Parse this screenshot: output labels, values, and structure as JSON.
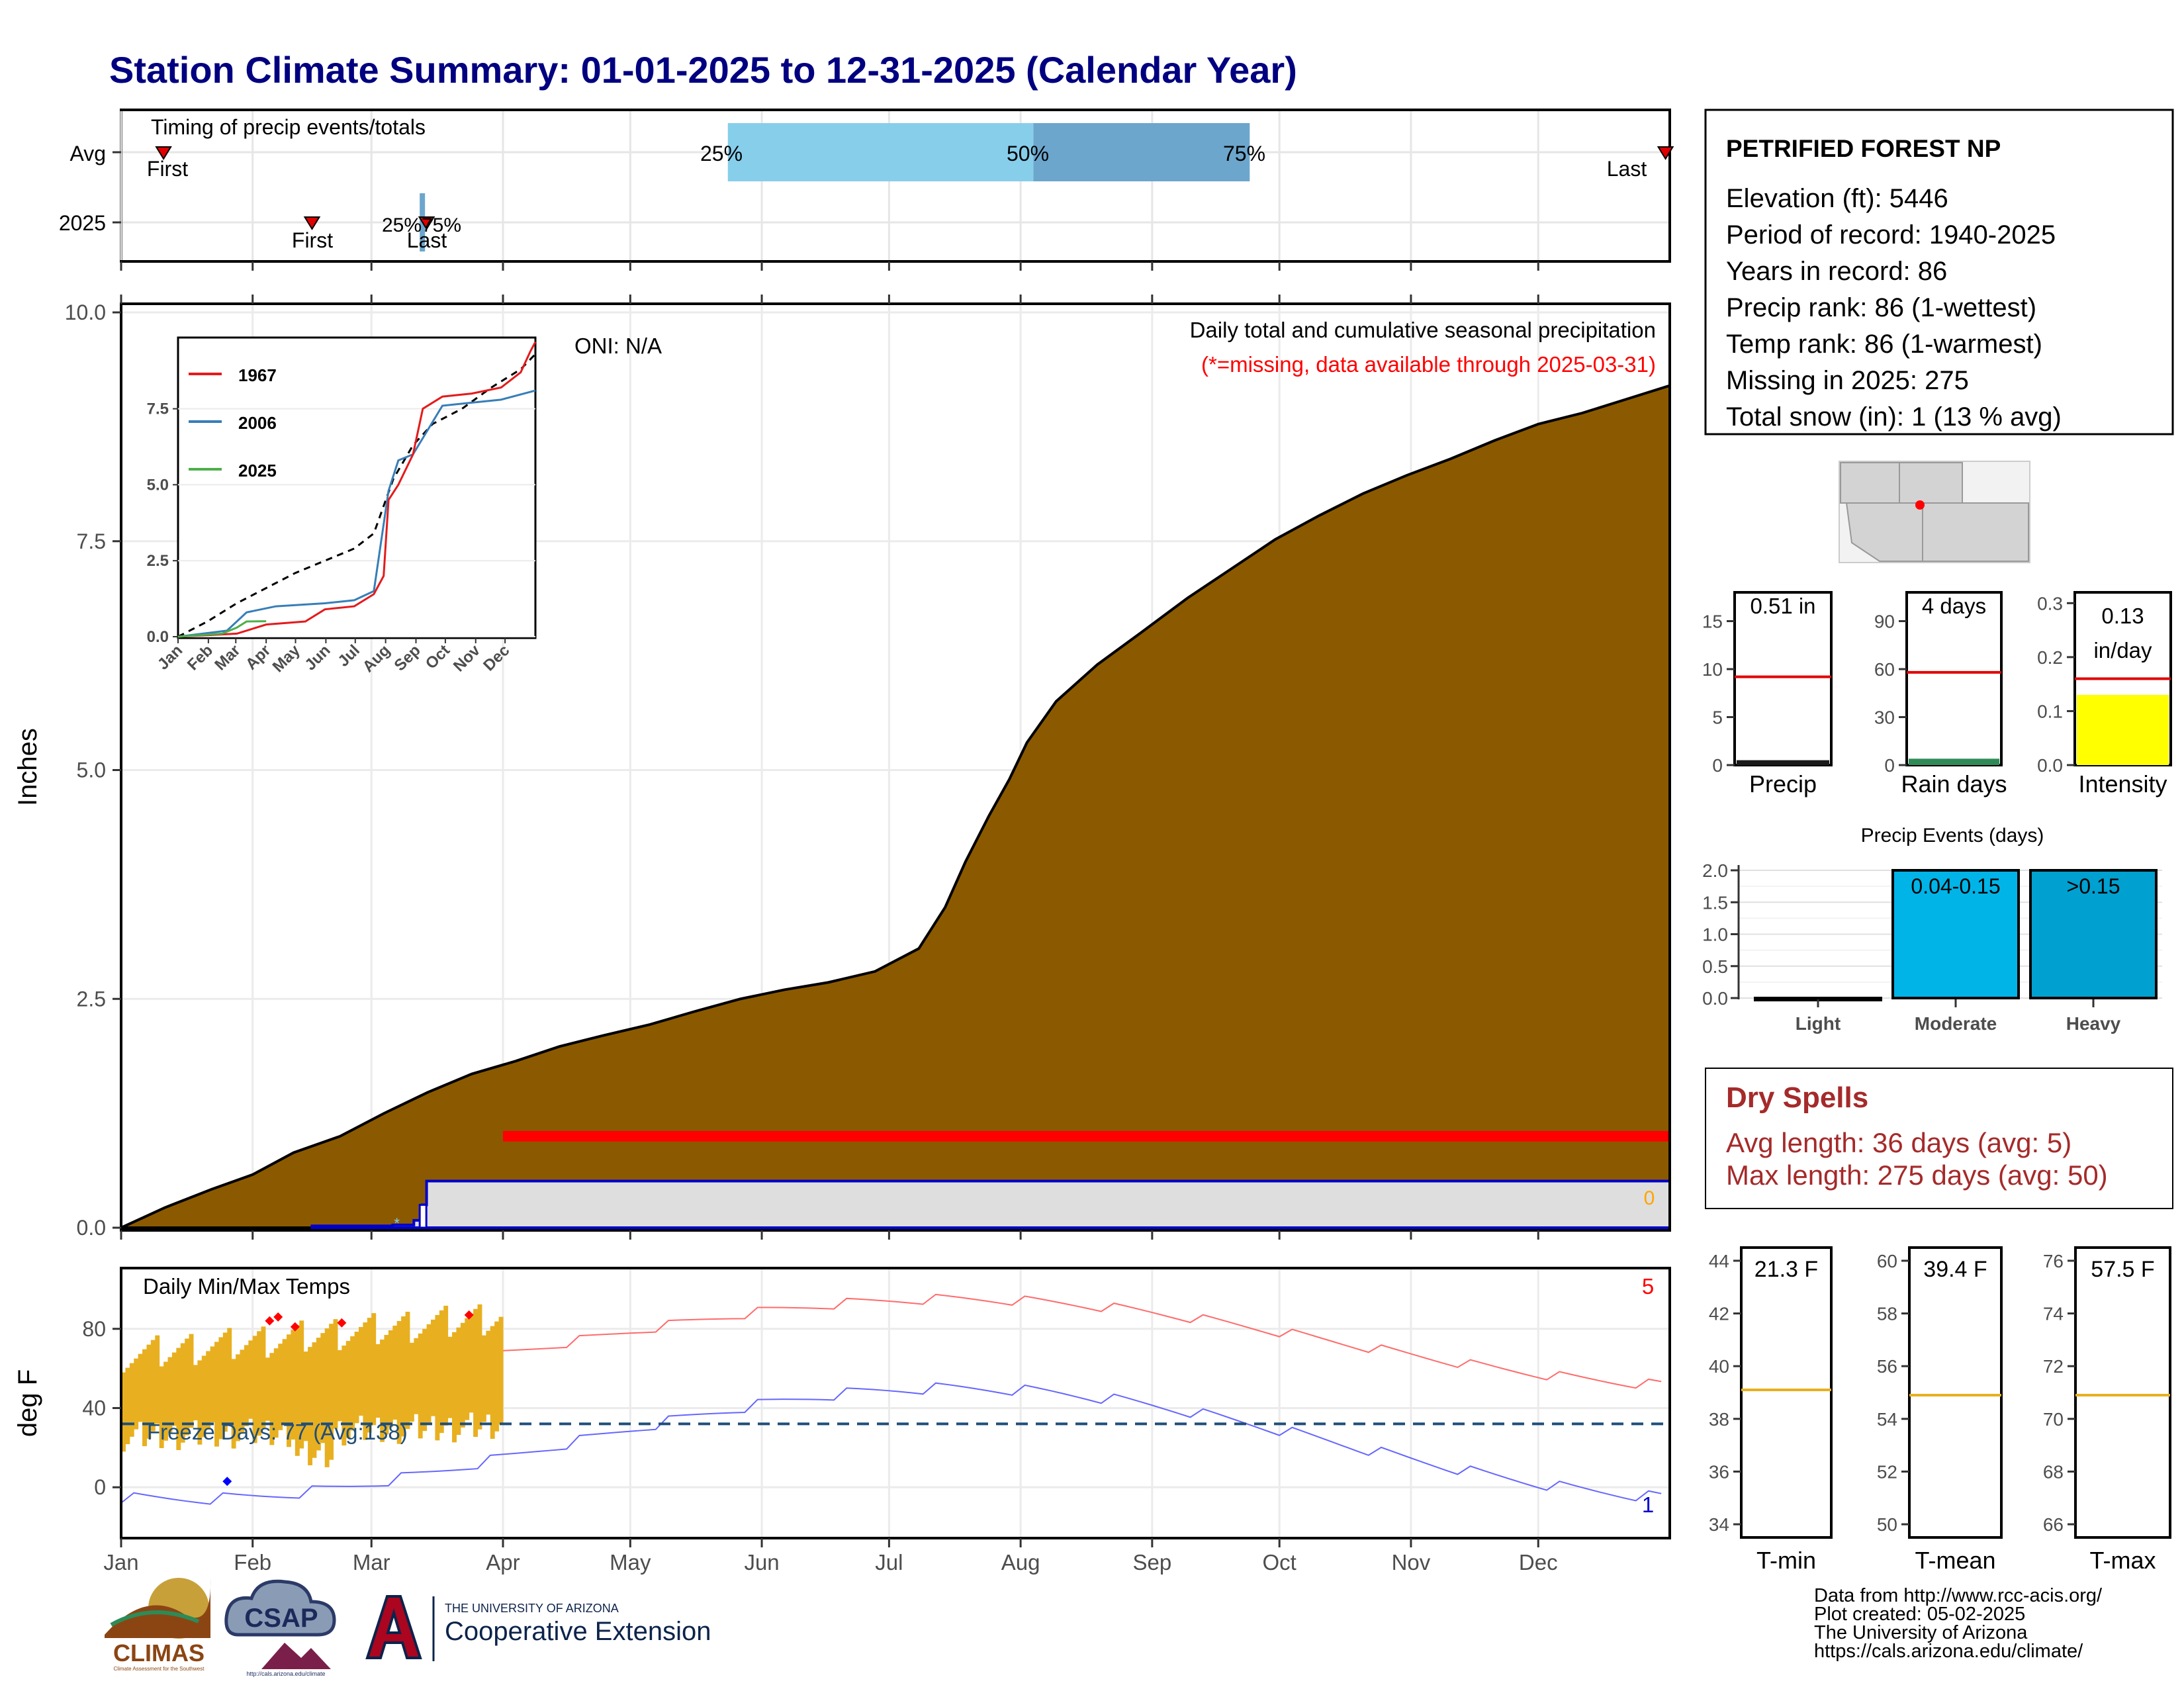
{
  "title": "Station Climate Summary: 01-01-2025 to 12-31-2025 (Calendar Year)",
  "colors": {
    "title": "#000080",
    "cumulative_fill": "#8B5A00",
    "missing": "#FF0000",
    "precip_2025": "#0000CC",
    "pct_light": "#87CEEB",
    "pct_dark": "#6CA6CD",
    "temp_bar": "#E8B020",
    "tmax_line": "#FF6B6B",
    "tmin_line": "#6666FF",
    "avg_line": "#E8B020",
    "rain_bar_light": "#00B4E8",
    "rain_bar_heavy": "#00A0D0",
    "intensity_bar": "#FFFF00",
    "dry_spell_text": "#A52A2A"
  },
  "months": [
    "Jan",
    "Feb",
    "Mar",
    "Apr",
    "May",
    "Jun",
    "Jul",
    "Aug",
    "Sep",
    "Oct",
    "Nov",
    "Dec"
  ],
  "timing": {
    "label": "Timing of precip events/totals",
    "rows": [
      "Avg",
      "2025"
    ],
    "first_label": "First",
    "last_label": "Last",
    "pct_25": "25%",
    "pct_50": "50%",
    "pct_75": "75%",
    "avg_first_day": 10,
    "avg_last_day": 364,
    "avg_p25_day": 143,
    "avg_p50_day": 215,
    "avg_p75_day": 266,
    "y2025_first_day": 45,
    "y2025_last_day": 72,
    "y2025_pct_day": 71,
    "y2025_pct_label": "25%75%"
  },
  "precip_chart": {
    "ylabel": "Inches",
    "yticks": [
      "0.0",
      "2.5",
      "5.0",
      "7.5",
      "10.0"
    ],
    "ymax": 10.0,
    "annotation_title": "Daily total and cumulative seasonal precipitation",
    "annotation_missing": "(*=missing, data available through 2025-03-31)",
    "oni": "ONI: N/A",
    "end_value_label": "0",
    "cumulative_avg": [
      [
        0,
        0
      ],
      [
        15,
        0.22
      ],
      [
        31,
        0.42
      ],
      [
        45,
        0.58
      ],
      [
        59,
        0.82
      ],
      [
        75,
        1.0
      ],
      [
        90,
        1.25
      ],
      [
        105,
        1.48
      ],
      [
        120,
        1.68
      ],
      [
        135,
        1.82
      ],
      [
        150,
        1.98
      ],
      [
        165,
        2.1
      ],
      [
        181,
        2.22
      ],
      [
        196,
        2.36
      ],
      [
        212,
        2.5
      ],
      [
        227,
        2.6
      ],
      [
        242,
        2.68
      ],
      [
        258,
        2.8
      ],
      [
        273,
        3.05
      ],
      [
        282,
        3.5
      ],
      [
        289,
        4.0
      ],
      [
        297,
        4.5
      ],
      [
        304,
        4.9
      ],
      [
        310,
        5.3
      ],
      [
        320,
        5.75
      ],
      [
        334,
        6.15
      ],
      [
        349,
        6.5
      ],
      [
        365,
        6.88
      ],
      [
        380,
        7.2
      ],
      [
        395,
        7.52
      ],
      [
        410,
        7.78
      ],
      [
        425,
        8.02
      ],
      [
        440,
        8.22
      ],
      [
        455,
        8.4
      ],
      [
        470,
        8.6
      ],
      [
        485,
        8.78
      ],
      [
        500,
        8.9
      ],
      [
        515,
        9.05
      ],
      [
        530,
        9.2
      ]
    ],
    "precip_2025": [
      [
        45,
        0
      ],
      [
        45,
        0.02
      ],
      [
        64,
        0.02
      ],
      [
        64,
        0.03
      ],
      [
        69,
        0.03
      ],
      [
        69,
        0.08
      ],
      [
        71,
        0.08
      ],
      [
        71,
        0.25
      ],
      [
        72,
        0.25
      ],
      [
        72,
        0.51
      ],
      [
        365,
        0.51
      ]
    ],
    "missing_from_day": 90,
    "missing_level": 1.0,
    "plot_days": 365,
    "x_note": "cumulative_avg uses a compressed day axis (0-530 spans Jan-Dec)"
  },
  "inset": {
    "legend": [
      "1967",
      "2006",
      "2025"
    ],
    "legend_colors": [
      "#E41A1C",
      "#377EB8",
      "#4DAF4A"
    ],
    "yticks": [
      "0.0",
      "2.5",
      "5.0",
      "7.5"
    ],
    "months": [
      "Jan",
      "Feb",
      "Mar",
      "Apr",
      "May",
      "Jun",
      "Jul",
      "Aug",
      "Sep",
      "Oct",
      "Nov",
      "Dec"
    ],
    "avg": [
      [
        0,
        0
      ],
      [
        30,
        0.5
      ],
      [
        60,
        1.1
      ],
      [
        90,
        1.6
      ],
      [
        120,
        2.1
      ],
      [
        150,
        2.5
      ],
      [
        180,
        2.9
      ],
      [
        200,
        3.4
      ],
      [
        220,
        5.2
      ],
      [
        240,
        6.3
      ],
      [
        260,
        7.0
      ],
      [
        290,
        7.5
      ],
      [
        320,
        8.2
      ],
      [
        350,
        8.8
      ],
      [
        365,
        9.3
      ]
    ],
    "y1967": [
      [
        0,
        0
      ],
      [
        60,
        0.1
      ],
      [
        90,
        0.4
      ],
      [
        130,
        0.5
      ],
      [
        150,
        0.9
      ],
      [
        180,
        1.0
      ],
      [
        200,
        1.4
      ],
      [
        210,
        2.0
      ],
      [
        215,
        4.5
      ],
      [
        225,
        5.0
      ],
      [
        240,
        6.0
      ],
      [
        250,
        7.5
      ],
      [
        270,
        7.9
      ],
      [
        300,
        8.0
      ],
      [
        330,
        8.2
      ],
      [
        350,
        8.7
      ],
      [
        360,
        9.4
      ],
      [
        365,
        9.7
      ]
    ],
    "y2006": [
      [
        0,
        0
      ],
      [
        50,
        0.2
      ],
      [
        70,
        0.8
      ],
      [
        100,
        1.0
      ],
      [
        150,
        1.1
      ],
      [
        180,
        1.2
      ],
      [
        200,
        1.5
      ],
      [
        215,
        4.8
      ],
      [
        225,
        5.8
      ],
      [
        240,
        6.0
      ],
      [
        255,
        6.8
      ],
      [
        270,
        7.6
      ],
      [
        300,
        7.7
      ],
      [
        330,
        7.8
      ],
      [
        365,
        8.1
      ]
    ],
    "y2025": [
      [
        0,
        0
      ],
      [
        45,
        0.1
      ],
      [
        60,
        0.3
      ],
      [
        70,
        0.5
      ],
      [
        90,
        0.51
      ]
    ],
    "ymax": 9.8
  },
  "temp_chart": {
    "title": "Daily Min/Max Temps",
    "ylabel": "deg F",
    "yticks": [
      "0",
      "40",
      "80"
    ],
    "freeze_label": "Freeze Days: 77 (Avg:138)",
    "count_hot": "5",
    "count_cold": "1",
    "freeze_level": 32,
    "obs_days": 90,
    "ymin": -25,
    "ymax": 110
  },
  "station": {
    "name": "PETRIFIED FOREST NP",
    "lines": [
      "Elevation (ft): 5446",
      "Period of record: 1940-2025",
      "Years in record: 86",
      "Precip rank: 86 (1-wettest)",
      "Temp rank: 86 (1-warmest)",
      "Missing in 2025: 275",
      "Total snow (in): 1 (13 % avg)"
    ]
  },
  "summary_bars": [
    {
      "label": "Precip",
      "value_text": "0.51 in",
      "value": 0.51,
      "avg": 9.2,
      "yticks": [
        "0",
        "5",
        "10",
        "15"
      ],
      "ymax": 18,
      "fill": "#1A1A1A"
    },
    {
      "label": "Rain days",
      "value_text": "4 days",
      "value": 4,
      "avg": 58,
      "yticks": [
        "0",
        "30",
        "60",
        "90"
      ],
      "ymax": 108,
      "fill": "#2E8B57"
    },
    {
      "label": "Intensity",
      "value_text": "0.13 in/day",
      "value": 0.13,
      "avg": 0.16,
      "yticks": [
        "0.0",
        "0.1",
        "0.2",
        "0.3"
      ],
      "ymax": 0.32,
      "fill": "#FFFF00"
    }
  ],
  "intensity_value_lines": [
    "0.13",
    "in/day"
  ],
  "precip_events": {
    "title": "Precip Events (days)",
    "categories": [
      "Light",
      "Moderate",
      "Heavy"
    ],
    "values": [
      0,
      2,
      2
    ],
    "bar_labels": [
      "",
      "0.04-0.15",
      ">0.15"
    ],
    "yticks": [
      "0.0",
      "0.5",
      "1.0",
      "1.5",
      "2.0"
    ],
    "ymax": 2.0
  },
  "dry_spells": {
    "title": "Dry Spells",
    "avg_length": "Avg length: 36 days (avg: 5)",
    "max_length": "Max length: 275 days (avg: 50)"
  },
  "temp_summary": [
    {
      "label": "T-min",
      "value_text": "21.3 F",
      "yticks": [
        "34",
        "36",
        "38",
        "40",
        "42",
        "44"
      ],
      "ymin": 33.5,
      "ymax": 44.5,
      "avg": 39.1
    },
    {
      "label": "T-mean",
      "value_text": "39.4 F",
      "yticks": [
        "50",
        "52",
        "54",
        "56",
        "58",
        "60"
      ],
      "ymin": 49.5,
      "ymax": 60.5,
      "avg": 54.9
    },
    {
      "label": "T-max",
      "value_text": "57.5 F",
      "yticks": [
        "66",
        "68",
        "70",
        "72",
        "74",
        "76"
      ],
      "ymin": 65.5,
      "ymax": 76.5,
      "avg": 70.9
    }
  ],
  "logos": {
    "climas": "CLIMAS",
    "climas_sub": "Climate Assessment for the Southwest",
    "csap": "CSAP",
    "csap_sub": "http://cals.arizona.edu/climate",
    "ua_top": "THE UNIVERSITY OF ARIZONA",
    "ua_bottom": "Cooperative Extension"
  },
  "footer": [
    "Data from http://www.rcc-acis.org/",
    "Plot created: 05-02-2025",
    "The University of Arizona",
    "https://cals.arizona.edu/climate/"
  ]
}
